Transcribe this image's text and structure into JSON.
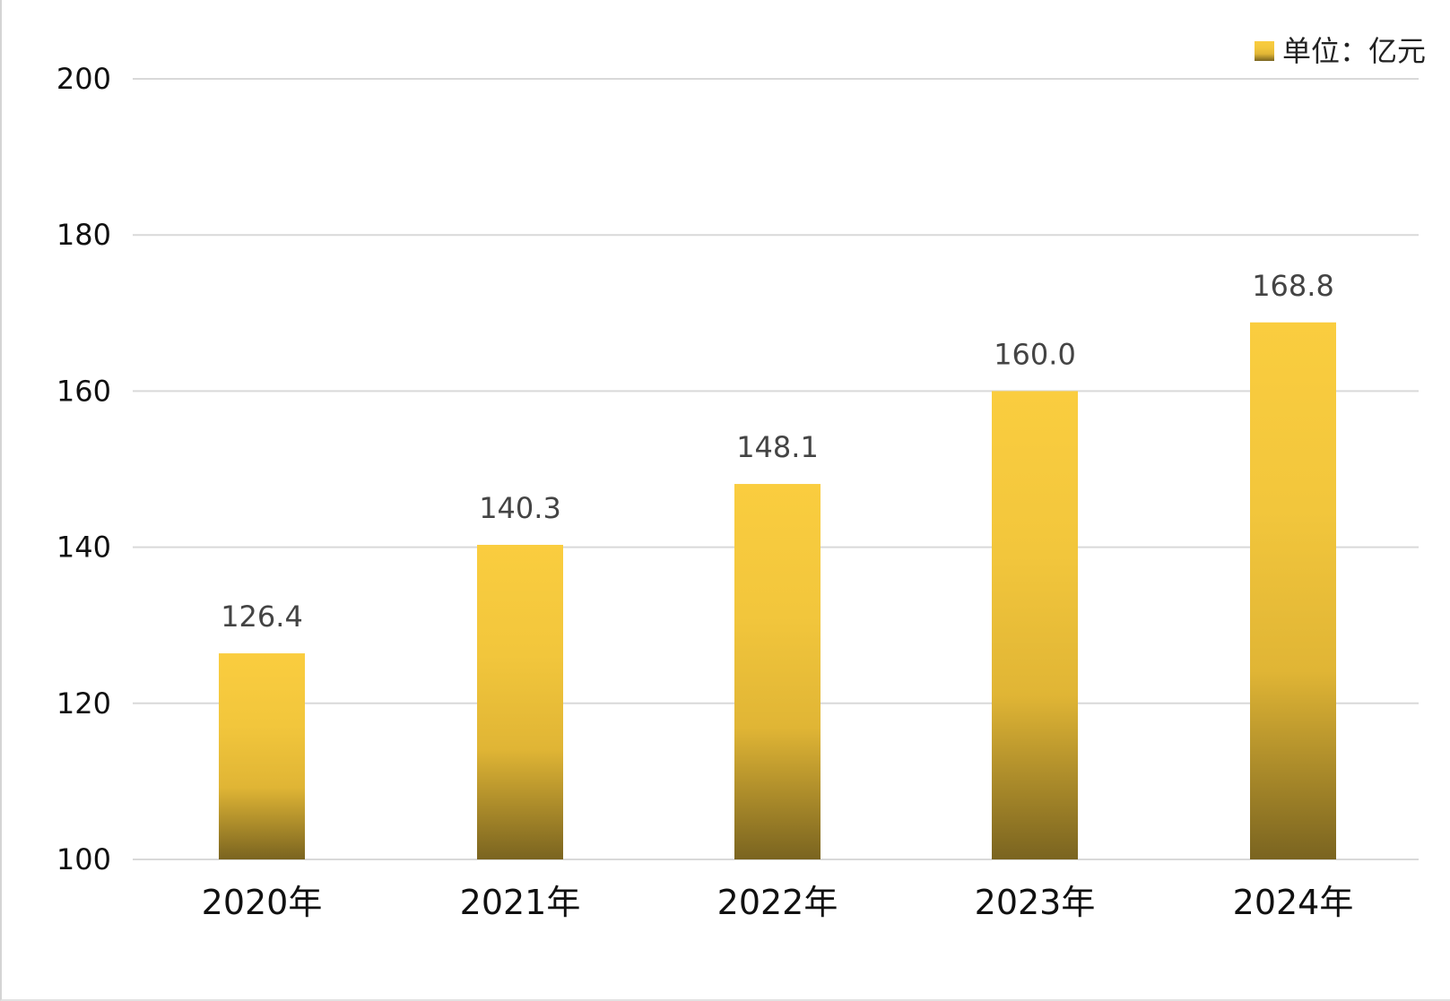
{
  "chart_data": {
    "type": "bar",
    "categories": [
      "2020年",
      "2021年",
      "2022年",
      "2023年",
      "2024年"
    ],
    "values": [
      126.4,
      140.3,
      148.1,
      160.0,
      168.8
    ],
    "value_labels": [
      "126.4",
      "140.3",
      "148.1",
      "160.0",
      "168.8"
    ],
    "series": [
      {
        "name": "单位：亿元",
        "values": [
          126.4,
          140.3,
          148.1,
          160.0,
          168.8
        ]
      }
    ],
    "ylim": [
      100,
      200
    ],
    "yticks": [
      100,
      120,
      140,
      160,
      180,
      200
    ],
    "ytick_labels": [
      "100",
      "120",
      "140",
      "160",
      "180",
      "200"
    ],
    "grid": true,
    "legend": {
      "label": "单位：亿元",
      "placement": "top-right"
    },
    "colors": {
      "bar_top": "#FACD3F",
      "bar_mid": "#E0B535",
      "bar_bottom": "#7A6420",
      "grid": "#D9D9D9"
    }
  }
}
